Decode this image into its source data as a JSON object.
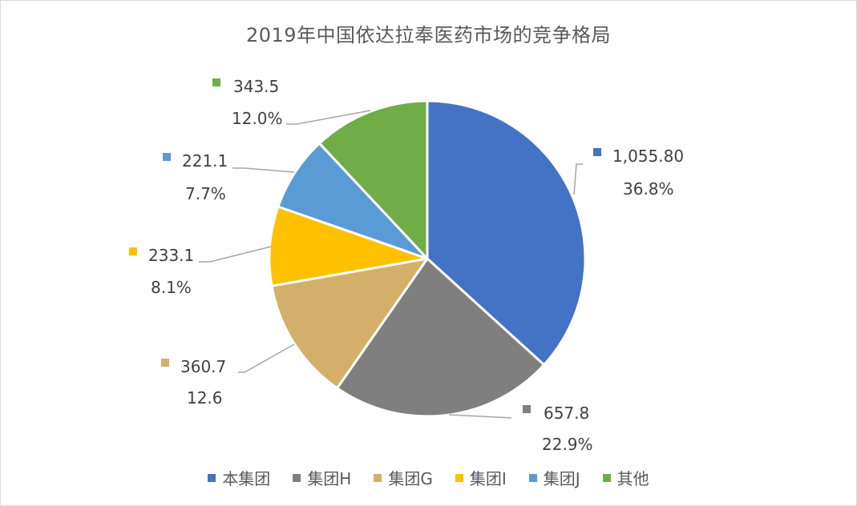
{
  "chart_data": {
    "type": "pie",
    "title": "2019年中国依达拉奉医药市场的竞争格局",
    "categories": [
      "本集团",
      "集团H",
      "集团G",
      "集团I",
      "集团J",
      "其他"
    ],
    "values": [
      1055.8,
      657.8,
      360.7,
      233.1,
      221.1,
      343.5
    ],
    "value_labels": [
      "1,055.80",
      "657.8",
      "360.7",
      "233.1",
      "221.1",
      "343.5"
    ],
    "percent_labels": [
      "36.8%",
      "22.9%",
      "12.6",
      "8.1%",
      "7.7%",
      "12.0%"
    ],
    "colors": [
      "#4472C4",
      "#7F7F7F",
      "#D4AF6A",
      "#FFC000",
      "#5B9BD5",
      "#70AD47"
    ],
    "start_angle": "12 o'clock, clockwise",
    "legend_position": "bottom"
  },
  "title": "2019年中国依达拉奉医药市场的竞争格局",
  "labels": [
    {
      "value": "1,055.80",
      "percent": "36.8%"
    },
    {
      "value": "657.8",
      "percent": "22.9%"
    },
    {
      "value": "360.7",
      "percent": "12.6"
    },
    {
      "value": "233.1",
      "percent": "8.1%"
    },
    {
      "value": "221.1",
      "percent": "7.7%"
    },
    {
      "value": "343.5",
      "percent": "12.0%"
    }
  ],
  "legend": [
    {
      "label": "本集团",
      "color": "#4472C4"
    },
    {
      "label": "集团H",
      "color": "#7F7F7F"
    },
    {
      "label": "集团G",
      "color": "#D4AF6A"
    },
    {
      "label": "集团I",
      "color": "#FFC000"
    },
    {
      "label": "集团J",
      "color": "#5B9BD5"
    },
    {
      "label": "其他",
      "color": "#70AD47"
    }
  ]
}
